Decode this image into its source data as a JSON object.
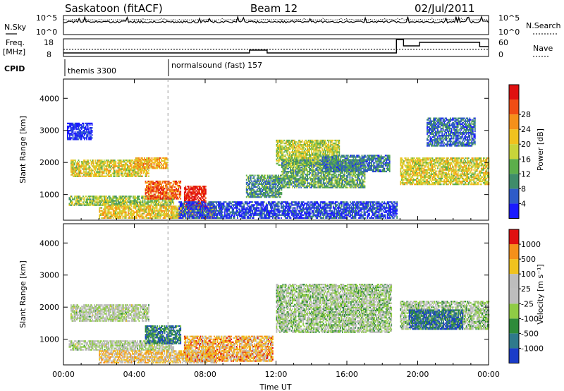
{
  "header": {
    "station": "Saskatoon (fitACF)",
    "beam": "Beam 12",
    "date": "02/Jul/2011"
  },
  "nsky_panel": {
    "left_label": "N.Sky",
    "right_label": "N.Search",
    "left_ticks": [
      "10^5",
      "10^0"
    ],
    "right_ticks": [
      "10^5",
      "10^0"
    ]
  },
  "freq_panel": {
    "left_label_line1": "Freq.",
    "left_label_line2": "[MHz]",
    "right_label": "Nave",
    "left_ticks": [
      "18",
      "8"
    ],
    "right_ticks": [
      "60",
      "0"
    ]
  },
  "cpid": {
    "label": "CPID",
    "segments": [
      {
        "start_hour": 0.0,
        "name": "themis 3300"
      },
      {
        "start_hour": 5.9,
        "name": "normalsound (fast) 157"
      }
    ]
  },
  "chart_data": [
    {
      "type": "heatmap",
      "name": "power",
      "xlabel": "",
      "ylabel": "Slant Range [km]",
      "xlim": [
        0,
        24
      ],
      "ylim": [
        200,
        4600
      ],
      "yticks": [
        1000,
        2000,
        3000,
        4000
      ],
      "colorbar": {
        "label": "Power [dB]",
        "ticks": [
          "4",
          "8",
          "12",
          "16",
          "20",
          "24",
          "28"
        ],
        "colors": [
          "#1a1aff",
          "#2e5bc8",
          "#3f8c6a",
          "#5cae4b",
          "#c8d43a",
          "#f0c21e",
          "#f5901a",
          "#f04d14",
          "#e01010"
        ]
      },
      "bands": [
        {
          "t0": 0.4,
          "t1": 4.8,
          "r0": 1550,
          "r1": 2050,
          "level": 0.55
        },
        {
          "t0": 4.0,
          "t1": 5.9,
          "r0": 1800,
          "r1": 2150,
          "level": 0.65
        },
        {
          "t0": 0.3,
          "t1": 6.2,
          "r0": 650,
          "r1": 950,
          "level": 0.45
        },
        {
          "t0": 2.0,
          "t1": 8.6,
          "r0": 250,
          "r1": 650,
          "level": 0.6
        },
        {
          "t0": 4.6,
          "t1": 6.6,
          "r0": 850,
          "r1": 1400,
          "level": 0.8
        },
        {
          "t0": 6.8,
          "t1": 8.0,
          "r0": 600,
          "r1": 1250,
          "level": 0.95
        },
        {
          "t0": 0.2,
          "t1": 1.6,
          "r0": 2700,
          "r1": 3200,
          "level": 0.05
        },
        {
          "t0": 6.5,
          "t1": 18.8,
          "r0": 250,
          "r1": 750,
          "level": 0.12
        },
        {
          "t0": 10.3,
          "t1": 12.3,
          "r0": 900,
          "r1": 1600,
          "level": 0.3
        },
        {
          "t0": 12.0,
          "t1": 15.6,
          "r0": 1900,
          "r1": 2700,
          "level": 0.5
        },
        {
          "t0": 12.3,
          "t1": 17.0,
          "r0": 1200,
          "r1": 2100,
          "level": 0.35
        },
        {
          "t0": 14.6,
          "t1": 18.4,
          "r0": 1700,
          "r1": 2200,
          "level": 0.25
        },
        {
          "t0": 19.0,
          "t1": 24.0,
          "r0": 1300,
          "r1": 2150,
          "level": 0.55
        },
        {
          "t0": 20.5,
          "t1": 23.2,
          "r0": 2500,
          "r1": 3400,
          "level": 0.2
        }
      ]
    },
    {
      "type": "heatmap",
      "name": "velocity",
      "xlabel": "Time UT",
      "ylabel": "Slant Range [km]",
      "xlim": [
        0,
        24
      ],
      "ylim": [
        200,
        4600
      ],
      "yticks": [
        1000,
        2000,
        3000,
        4000
      ],
      "xticks": [
        "00:00",
        "04:00",
        "08:00",
        "12:00",
        "16:00",
        "20:00",
        "00:00"
      ],
      "colorbar": {
        "label": "Velocity [m s⁻¹]",
        "ticks": [
          "1000",
          "500",
          "100",
          "25",
          "-25",
          "-100",
          "-500",
          "-1000"
        ],
        "colors": [
          "#1a3cc8",
          "#2f7a8c",
          "#2e8b3a",
          "#8fcc45",
          "#bdbdbd",
          "#bdbdbd",
          "#f0c21e",
          "#f5901a",
          "#e01010"
        ]
      },
      "bands": [
        {
          "t0": 0.4,
          "t1": 4.8,
          "r0": 1550,
          "r1": 2050,
          "level": 0.5
        },
        {
          "t0": 0.3,
          "t1": 6.2,
          "r0": 650,
          "r1": 950,
          "level": 0.5
        },
        {
          "t0": 2.0,
          "t1": 8.6,
          "r0": 250,
          "r1": 650,
          "level": 0.7
        },
        {
          "t0": 4.6,
          "t1": 6.6,
          "r0": 850,
          "r1": 1400,
          "level": 0.2
        },
        {
          "t0": 6.8,
          "t1": 11.8,
          "r0": 300,
          "r1": 1100,
          "level": 0.75
        },
        {
          "t0": 12.0,
          "t1": 18.5,
          "r0": 1200,
          "r1": 2700,
          "level": 0.45
        },
        {
          "t0": 19.0,
          "t1": 24.0,
          "r0": 1300,
          "r1": 2200,
          "level": 0.45
        },
        {
          "t0": 19.5,
          "t1": 22.5,
          "r0": 1300,
          "r1": 1900,
          "level": 0.15
        }
      ]
    }
  ]
}
